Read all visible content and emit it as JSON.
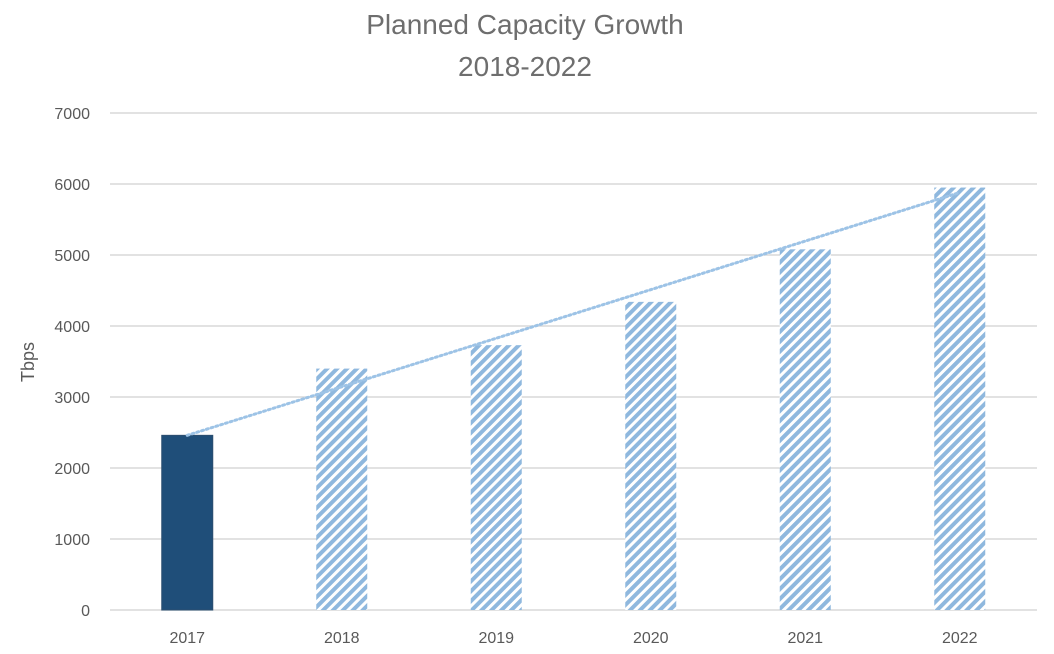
{
  "chart_data": {
    "type": "bar",
    "title": "Planned Capacity Growth",
    "subtitle": "2018-2022",
    "xlabel": "",
    "ylabel": "Tbps",
    "categories": [
      "2017",
      "2018",
      "2019",
      "2020",
      "2021",
      "2022"
    ],
    "values": [
      2460,
      3400,
      3730,
      4340,
      5080,
      5950
    ],
    "bar_styles": [
      "solid",
      "hatched",
      "hatched",
      "hatched",
      "hatched",
      "hatched"
    ],
    "ylim": [
      0,
      7000
    ],
    "yticks": [
      0,
      1000,
      2000,
      3000,
      4000,
      5000,
      6000,
      7000
    ],
    "grid": true,
    "legend": "none",
    "trendline": {
      "type": "linear",
      "style": "dotted",
      "start": {
        "x": "2017",
        "y": 2460
      },
      "end": {
        "x": "2022",
        "y": 5880
      }
    },
    "colors": {
      "actual": "#1f4e79",
      "planned": "#8fb8de",
      "trendline": "#9dc3e6",
      "grid": "#d9d9d9",
      "text": "#6e6e6e"
    }
  }
}
